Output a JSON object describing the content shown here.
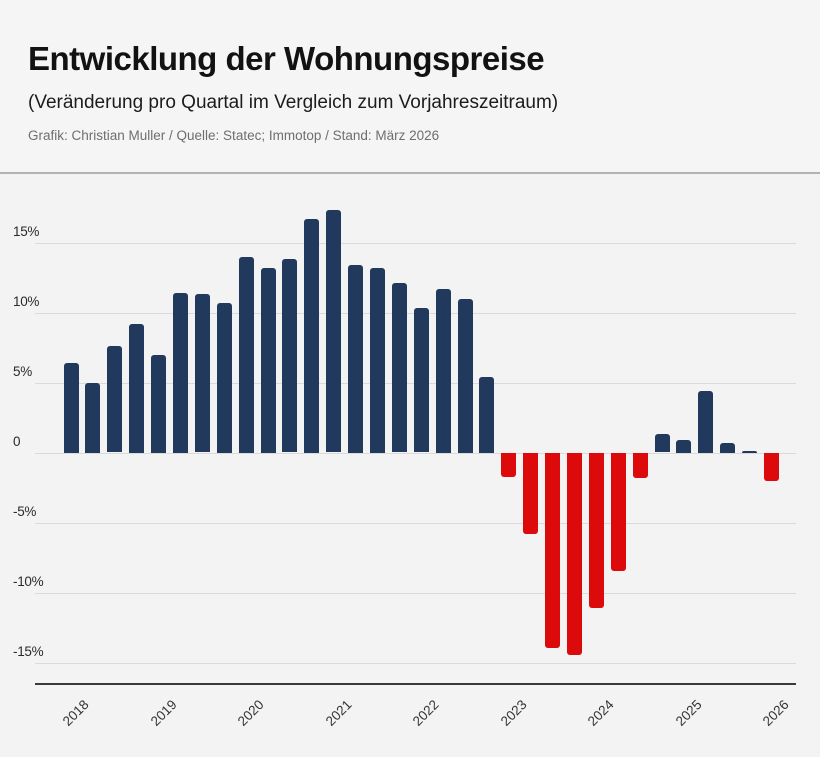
{
  "header": {
    "title": "Entwicklung der Wohnungspreise",
    "subtitle": "(Veränderung pro Quartal im Vergleich zum Vorjahreszeitraum)",
    "credit": "Grafik: Christian Muller / Quelle: Statec; Immotop / Stand: März 2026"
  },
  "chart_data": {
    "type": "bar",
    "title": "Entwicklung der Wohnungspreise",
    "subtitle": "(Veränderung pro Quartal im Vergleich zum Vorjahreszeitraum)",
    "unit": "%",
    "x": [
      "2018 Q1",
      "2018 Q2",
      "2018 Q3",
      "2018 Q4",
      "2019 Q1",
      "2019 Q2",
      "2019 Q3",
      "2019 Q4",
      "2020 Q1",
      "2020 Q2",
      "2020 Q3",
      "2020 Q4",
      "2021 Q1",
      "2021 Q2",
      "2021 Q3",
      "2021 Q4",
      "2022 Q1",
      "2022 Q2",
      "2022 Q3",
      "2022 Q4",
      "2023 Q1",
      "2023 Q2",
      "2023 Q3",
      "2023 Q4",
      "2024 Q1",
      "2024 Q2",
      "2024 Q3",
      "2024 Q4",
      "2025 Q1",
      "2025 Q2",
      "2025 Q3",
      "2025 Q4",
      "2026 Q1"
    ],
    "values": [
      6.4,
      5.0,
      7.6,
      9.2,
      7.0,
      11.4,
      11.3,
      10.7,
      14.0,
      13.2,
      13.8,
      16.7,
      17.3,
      13.4,
      13.2,
      12.1,
      10.3,
      11.7,
      11.0,
      5.4,
      -1.7,
      -5.8,
      -13.9,
      -14.4,
      -11.1,
      -8.4,
      -1.8,
      1.3,
      0.9,
      4.4,
      0.7,
      0.1,
      -2.0
    ],
    "year_ticks": [
      "2018",
      "2019",
      "2020",
      "2021",
      "2022",
      "2023",
      "2024",
      "2025",
      "2026"
    ],
    "y_ticks": [
      "15%",
      "10%",
      "5%",
      "0",
      "-5%",
      "-10%",
      "-15%"
    ],
    "y_tick_values": [
      15,
      10,
      5,
      0,
      -5,
      -10,
      -15
    ],
    "ylim": [
      -16.5,
      18.4
    ],
    "grid": true,
    "legend": "none",
    "colors": {
      "positive": "#20395c",
      "negative": "#dc0a0a",
      "background": "#f3f3f4",
      "gridline": "#dadada",
      "axis": "#3a3a3a"
    }
  }
}
